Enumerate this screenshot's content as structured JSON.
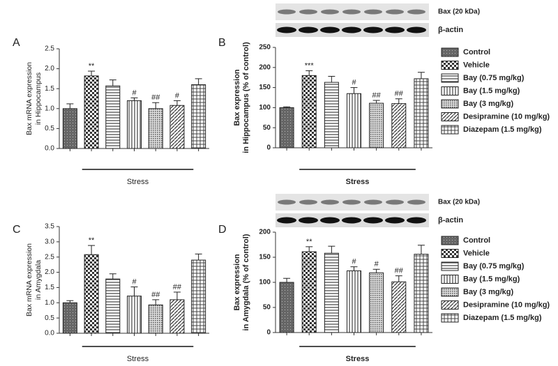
{
  "chart_data": [
    {
      "type": "bar",
      "panel": "A",
      "ylabel": [
        "Bax mRNA expression",
        "in Hippocampus"
      ],
      "values": [
        1.0,
        1.82,
        1.57,
        1.2,
        1.0,
        1.08,
        1.6
      ],
      "errors": [
        0.12,
        0.12,
        0.15,
        0.07,
        0.15,
        0.12,
        0.15
      ],
      "significance": [
        null,
        "**",
        null,
        "#",
        "##",
        "#",
        null
      ],
      "ylim": [
        0,
        2.5
      ],
      "yticks": [
        {
          "value": 0,
          "label": "0.0"
        },
        {
          "value": 0.5,
          "label": "0.5"
        },
        {
          "value": 1,
          "label": "1.0"
        },
        {
          "value": 1.5,
          "label": "1.5"
        },
        {
          "value": 2,
          "label": "2.0"
        },
        {
          "value": 2.5,
          "label": "2.5"
        }
      ],
      "stress_label": "Stress"
    },
    {
      "type": "bar",
      "panel": "B",
      "ylabel": [
        "Bax expression",
        "in Hippocampus (% of control)"
      ],
      "blot_labels": [
        "Bax (20 kDa)",
        "β-actin"
      ],
      "categories": [
        "Control",
        "Vehicle",
        "Bay (0.75 mg/kg)",
        "Bay (1.5 mg/kg)",
        "Bay (3 mg/kg)",
        "Desipramine (10 mg/kg)",
        "Diazepam (1.5 mg/kg)"
      ],
      "values": [
        100,
        180,
        163,
        135,
        111,
        110,
        172
      ],
      "errors": [
        2,
        12,
        15,
        15,
        7,
        12,
        16
      ],
      "significance": [
        null,
        "***",
        null,
        "#",
        "##",
        "##",
        null
      ],
      "ylim": [
        0,
        250
      ],
      "yticks": [
        0,
        50,
        100,
        150,
        200,
        250
      ],
      "stress_label": "Stress"
    },
    {
      "type": "bar",
      "panel": "C",
      "ylabel": [
        "Bax mRNA expression",
        "in Amygdala"
      ],
      "values": [
        1.0,
        2.58,
        1.78,
        1.22,
        0.93,
        1.1,
        2.4
      ],
      "errors": [
        0.07,
        0.3,
        0.17,
        0.3,
        0.17,
        0.25,
        0.2
      ],
      "significance": [
        null,
        "**",
        null,
        "#",
        "##",
        "##",
        null
      ],
      "ylim": [
        0,
        3.5
      ],
      "yticks": [
        {
          "value": 0,
          "label": "0.0"
        },
        {
          "value": 0.5,
          "label": "0.5"
        },
        {
          "value": 1,
          "label": "1.0"
        },
        {
          "value": 1.5,
          "label": "1.5"
        },
        {
          "value": 2,
          "label": "2.0"
        },
        {
          "value": 2.5,
          "label": "2.5"
        },
        {
          "value": 3,
          "label": "3.0"
        },
        {
          "value": 3.5,
          "label": "3.5"
        }
      ],
      "stress_label": "Stress"
    },
    {
      "type": "bar",
      "panel": "D",
      "ylabel": [
        "Bax expression",
        "in Amygdala (% of control)"
      ],
      "blot_labels": [
        "Bax (20 kDa)",
        "β-actin"
      ],
      "categories": [
        "Control",
        "Vehicle",
        "Bay (0.75 mg/kg)",
        "Bay (1.5 mg/kg)",
        "Bay (3 mg/kg)",
        "Desipramine (10 mg/kg)",
        "Diazepam (1.5 mg/kg)"
      ],
      "values": [
        100,
        161,
        158,
        123,
        119,
        101,
        156
      ],
      "errors": [
        8,
        10,
        14,
        8,
        7,
        12,
        18
      ],
      "significance": [
        null,
        "**",
        null,
        "#",
        "#",
        "##",
        null
      ],
      "ylim": [
        0,
        200
      ],
      "yticks": [
        0,
        50,
        100,
        150,
        200
      ],
      "stress_label": "Stress"
    }
  ]
}
